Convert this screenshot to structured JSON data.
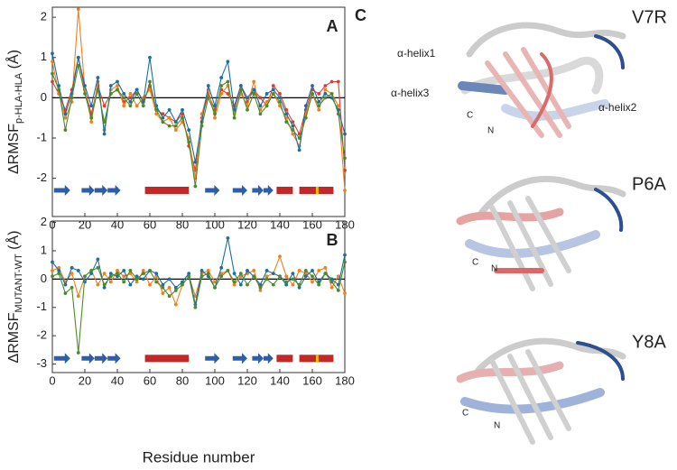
{
  "chart_data": [
    {
      "type": "line",
      "panel": "A",
      "ylabel": "ΔRMSF",
      "ylabel_sub": "p-HLA-HLA",
      "ylabel_unit": " (Å)",
      "xlim": [
        0,
        180
      ],
      "xticks": [
        0,
        20,
        40,
        60,
        80,
        100,
        120,
        140,
        160,
        180
      ],
      "ylim": [
        -2.95,
        2.25
      ],
      "yticks": [
        -2,
        -1,
        0,
        1,
        2
      ],
      "zero_line": true,
      "x": [
        0,
        4,
        8,
        12,
        16,
        20,
        24,
        28,
        32,
        36,
        40,
        44,
        48,
        52,
        56,
        60,
        64,
        68,
        72,
        76,
        80,
        84,
        88,
        92,
        96,
        100,
        104,
        108,
        112,
        116,
        120,
        124,
        128,
        132,
        136,
        140,
        144,
        148,
        152,
        156,
        160,
        164,
        168,
        172,
        176,
        180
      ],
      "series": [
        {
          "color": "#e03c31",
          "values": [
            0.4,
            0.1,
            -0.3,
            0.2,
            1.0,
            0.2,
            -0.4,
            0.3,
            -0.2,
            0.1,
            0.2,
            -0.1,
            0.0,
            0.2,
            -0.1,
            0.3,
            -0.3,
            -0.4,
            -0.5,
            -0.6,
            -0.4,
            -1.2,
            -1.8,
            -0.5,
            0.1,
            -0.3,
            0.2,
            0.1,
            -0.2,
            0.3,
            -0.1,
            0.2,
            0.0,
            -0.2,
            0.3,
            0.1,
            -0.3,
            -0.6,
            -0.9,
            -0.3,
            0.2,
            0.1,
            0.3,
            0.4,
            0.4,
            -1.8
          ]
        },
        {
          "color": "#f0801e",
          "values": [
            0.9,
            0.1,
            -0.5,
            -0.1,
            2.2,
            0.2,
            -0.6,
            0.4,
            -0.8,
            0.2,
            0.3,
            -0.2,
            0.1,
            -0.2,
            0.0,
            0.2,
            -0.4,
            -0.6,
            -0.5,
            -0.8,
            -0.6,
            -1.0,
            -2.0,
            -0.4,
            0.2,
            -0.5,
            0.1,
            0.3,
            -0.4,
            0.1,
            -0.2,
            0.4,
            -0.3,
            -0.1,
            0.1,
            -0.2,
            -0.5,
            -0.9,
            -1.2,
            -0.4,
            0.1,
            -0.3,
            0.2,
            0.1,
            -0.2,
            -2.3
          ]
        },
        {
          "color": "#1b6fa3",
          "values": [
            1.1,
            0.3,
            -0.4,
            0.1,
            1.0,
            0.3,
            -0.2,
            0.5,
            -0.9,
            0.3,
            0.4,
            0.1,
            -0.1,
            0.2,
            -0.1,
            1.0,
            -0.2,
            -0.5,
            -0.3,
            -0.6,
            -0.3,
            -0.8,
            -1.6,
            -0.6,
            0.3,
            -0.2,
            0.5,
            0.9,
            -0.3,
            0.3,
            0.0,
            0.2,
            -0.2,
            0.1,
            0.2,
            0.0,
            -0.4,
            -0.7,
            -1.3,
            -0.2,
            0.3,
            -0.1,
            0.1,
            0.0,
            -0.3,
            -0.9
          ]
        },
        {
          "color": "#4b8c2a",
          "values": [
            0.6,
            0.2,
            -0.8,
            0.0,
            0.8,
            0.1,
            -0.5,
            0.2,
            -0.6,
            0.1,
            0.2,
            0.0,
            -0.2,
            0.1,
            -0.2,
            0.4,
            -0.3,
            -0.6,
            -0.7,
            -0.7,
            -0.5,
            -1.1,
            -2.2,
            -0.7,
            0.0,
            -0.4,
            0.3,
            0.4,
            -0.5,
            0.2,
            -0.3,
            0.1,
            -0.4,
            -0.2,
            0.1,
            -0.1,
            -0.6,
            -0.8,
            -1.0,
            -0.5,
            0.1,
            -0.2,
            0.0,
            0.1,
            -0.4,
            -1.5
          ]
        }
      ],
      "structure_y": -2.3,
      "strand_color": "#2e5ea8",
      "helix_color": "#c42727",
      "marker_color": "#f5b800",
      "strands": [
        [
          1,
          11
        ],
        [
          18,
          26
        ],
        [
          26,
          34
        ],
        [
          34,
          42
        ],
        [
          94,
          103
        ],
        [
          111,
          120
        ],
        [
          123,
          130
        ],
        [
          130,
          136
        ]
      ],
      "helices": [
        [
          57,
          84
        ],
        [
          138,
          148
        ],
        [
          152,
          173
        ]
      ],
      "marker": [
        163
      ]
    },
    {
      "type": "line",
      "panel": "B",
      "ylabel": "ΔRMSF",
      "ylabel_sub": "MUTANT-WT",
      "ylabel_unit": " (Å)",
      "xlabel": "Residue number",
      "xlim": [
        0,
        180
      ],
      "xticks": [
        0,
        20,
        40,
        60,
        80,
        100,
        120,
        140,
        160,
        180
      ],
      "ylim": [
        -3.3,
        2.05
      ],
      "yticks": [
        -3,
        -2,
        -1,
        0,
        1,
        2
      ],
      "zero_line": true,
      "x": [
        0,
        4,
        8,
        12,
        16,
        20,
        24,
        28,
        32,
        36,
        40,
        44,
        48,
        52,
        56,
        60,
        64,
        68,
        72,
        76,
        80,
        84,
        88,
        92,
        96,
        100,
        104,
        108,
        112,
        116,
        120,
        124,
        128,
        132,
        136,
        140,
        144,
        148,
        152,
        156,
        160,
        164,
        168,
        172,
        176,
        180
      ],
      "series": [
        {
          "color": "#f0801e",
          "values": [
            0.3,
            0.4,
            -0.1,
            0.2,
            -0.6,
            0.1,
            0.3,
            -0.2,
            0.2,
            -0.1,
            0.3,
            0.1,
            0.2,
            -0.1,
            0.3,
            -0.2,
            0.1,
            -0.5,
            -0.3,
            -0.9,
            -0.2,
            0.1,
            -0.6,
            0.2,
            0.3,
            -0.1,
            0.2,
            0.3,
            -0.2,
            0.1,
            0.2,
            0.3,
            -0.4,
            0.1,
            0.2,
            0.8,
            0.1,
            -0.2,
            0.3,
            0.2,
            -0.1,
            0.3,
            0.4,
            -0.3,
            0.1,
            -0.5
          ]
        },
        {
          "color": "#1b6fa3",
          "values": [
            0.6,
            0.3,
            -0.2,
            0.4,
            0.3,
            -0.1,
            0.2,
            0.7,
            -0.3,
            0.2,
            0.1,
            0.3,
            -0.2,
            0.1,
            0.0,
            0.3,
            0.2,
            -0.2,
            0.0,
            -0.3,
            -0.1,
            0.2,
            -0.9,
            0.3,
            0.1,
            -0.3,
            0.4,
            1.45,
            0.2,
            -0.2,
            0.3,
            0.1,
            -0.2,
            0.3,
            0.2,
            0.1,
            -0.2,
            0.2,
            -0.3,
            0.1,
            0.3,
            -0.1,
            0.2,
            0.0,
            -0.2,
            0.85
          ]
        },
        {
          "color": "#4b8c2a",
          "values": [
            0.1,
            0.2,
            -0.5,
            -0.3,
            -2.6,
            0.1,
            0.3,
            0.4,
            -0.2,
            0.1,
            0.2,
            -0.1,
            0.3,
            0.0,
            0.2,
            0.3,
            -0.1,
            -0.3,
            -0.6,
            -0.4,
            -0.2,
            0.1,
            -1.0,
            0.1,
            0.2,
            -0.3,
            0.1,
            0.3,
            -0.1,
            0.2,
            -0.2,
            0.1,
            -0.3,
            0.0,
            -0.2,
            0.1,
            -0.1,
            0.0,
            -0.2,
            0.3,
            0.1,
            -0.2,
            0.2,
            -0.1,
            -0.4,
            0.6
          ]
        }
      ],
      "structure_y": -2.8,
      "strand_color": "#2e5ea8",
      "helix_color": "#c42727",
      "marker_color": "#f5b800",
      "strands": [
        [
          1,
          11
        ],
        [
          18,
          26
        ],
        [
          26,
          34
        ],
        [
          34,
          42
        ],
        [
          94,
          103
        ],
        [
          111,
          120
        ],
        [
          123,
          130
        ],
        [
          130,
          136
        ]
      ],
      "helices": [
        [
          57,
          84
        ],
        [
          138,
          148
        ],
        [
          152,
          173
        ]
      ],
      "marker": [
        163
      ]
    }
  ],
  "panel_c": {
    "label": "C",
    "structures": [
      {
        "name": "V7R",
        "labels": [
          "α-helix1",
          "α-helix3",
          "α-helix2",
          "C",
          "N"
        ]
      },
      {
        "name": "P6A",
        "labels": [
          "C",
          "N"
        ]
      },
      {
        "name": "Y8A",
        "labels": [
          "C",
          "N"
        ]
      }
    ]
  }
}
